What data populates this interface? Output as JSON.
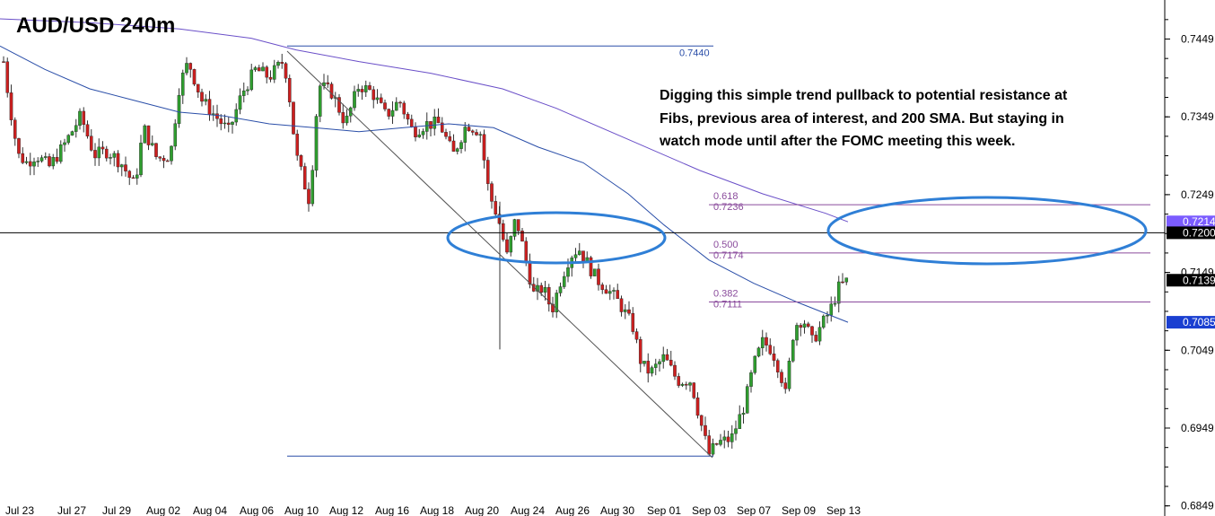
{
  "chart_data": {
    "type": "candlestick",
    "title": "AUD/USD 240m",
    "annotation": "Digging this simple trend pullback to potential resistance at Fibs, previous area of interest, and 200 SMA.  But staying in watch mode until after the FOMC meeting this week.",
    "annotation_lines": [
      "Digging this simple trend pullback to potential resistance at",
      "Fibs, previous area of interest, and 200 SMA.  But staying in",
      "watch mode until after the FOMC meeting this week."
    ],
    "x_tick_labels": [
      "Jul 23",
      "Jul 27",
      "Jul 29",
      "Aug 02",
      "Aug 04",
      "Aug 06",
      "Aug 10",
      "Aug 12",
      "Aug 16",
      "Aug 18",
      "Aug 20",
      "Aug 24",
      "Aug 26",
      "Aug 30",
      "Sep 01",
      "Sep 03",
      "Sep 07",
      "Sep 09",
      "Sep 13"
    ],
    "y_ticks": [
      0.6849,
      0.6949,
      0.7049,
      0.7149,
      0.7249,
      0.7349,
      0.7449
    ],
    "y_tick_labels": [
      "0.6849",
      "0.6949",
      "0.7049",
      "0.7149",
      "0.7249",
      "0.7349",
      "0.7449"
    ],
    "ylim": [
      0.6835,
      0.7495
    ],
    "grid": false,
    "price_tags": [
      {
        "label": "0.7214",
        "value": 0.7214,
        "bg": "#7b5cff",
        "fg": "#ffffff"
      },
      {
        "label": "0.7200",
        "value": 0.72,
        "bg": "#000000",
        "fg": "#ffffff"
      },
      {
        "label": "0.7139",
        "value": 0.7139,
        "bg": "#000000",
        "fg": "#ffffff"
      },
      {
        "label": "0.7085",
        "value": 0.7085,
        "bg": "#1a3fd1",
        "fg": "#ffffff"
      }
    ],
    "horizontal_line": {
      "value": 0.72,
      "color": "#000000"
    },
    "fib_levels": [
      {
        "ratio": "0.618",
        "price": "0.7236",
        "value": 0.7236
      },
      {
        "ratio": "0.500",
        "price": "0.7174",
        "value": 0.7174
      },
      {
        "ratio": "0.382",
        "price": "0.7111",
        "value": 0.7111
      }
    ],
    "fib_anchor_high": {
      "label": "0.7440",
      "value": 0.744
    },
    "fib_anchor_low": {
      "value": 0.6913
    },
    "colors": {
      "bull": "#2f9e2f",
      "bear": "#cc1f1f",
      "sma200": "#6a4fc8",
      "sma_fast": "#2a4ea8",
      "fib": "#8a4b9c",
      "trend_line": "#555555",
      "ellipse": "#2f7fd6",
      "anchor": "#2a4ea8"
    }
  }
}
